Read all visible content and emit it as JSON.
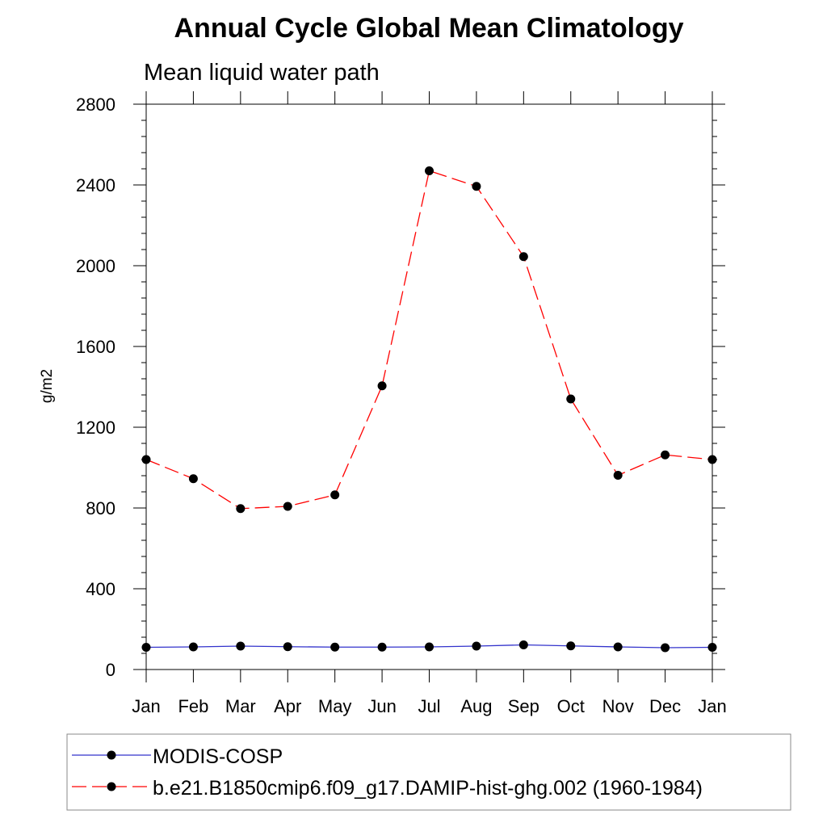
{
  "chart_data": {
    "type": "line",
    "title": "Annual Cycle Global Mean Climatology",
    "subtitle": "Mean liquid water path",
    "xlabel": "",
    "ylabel": "g/m2",
    "categories": [
      "Jan",
      "Feb",
      "Mar",
      "Apr",
      "May",
      "Jun",
      "Jul",
      "Aug",
      "Sep",
      "Oct",
      "Nov",
      "Dec",
      "Jan"
    ],
    "ylim": [
      0,
      2800
    ],
    "yticks": [
      0,
      400,
      800,
      1200,
      1600,
      2000,
      2400,
      2800
    ],
    "ytick_labels": [
      "0",
      "400",
      "800",
      "1200",
      "1600",
      "2000",
      "2400",
      "2800"
    ],
    "grid": false,
    "legend_position": "bottom",
    "series": [
      {
        "name": "MODIS-COSP",
        "color": "#3333cc",
        "line_style": "solid",
        "marker": "filled-circle",
        "values": [
          110,
          112,
          116,
          113,
          111,
          111,
          112,
          116,
          122,
          117,
          112,
          108,
          110
        ]
      },
      {
        "name": "b.e21.B1850cmip6.f09_g17.DAMIP-hist-ghg.002 (1960-1984)",
        "color": "#ff0000",
        "line_style": "dashed",
        "marker": "filled-circle",
        "values": [
          1040,
          945,
          797,
          808,
          865,
          1405,
          2470,
          2393,
          2045,
          1340,
          962,
          1063,
          1040
        ]
      }
    ]
  }
}
